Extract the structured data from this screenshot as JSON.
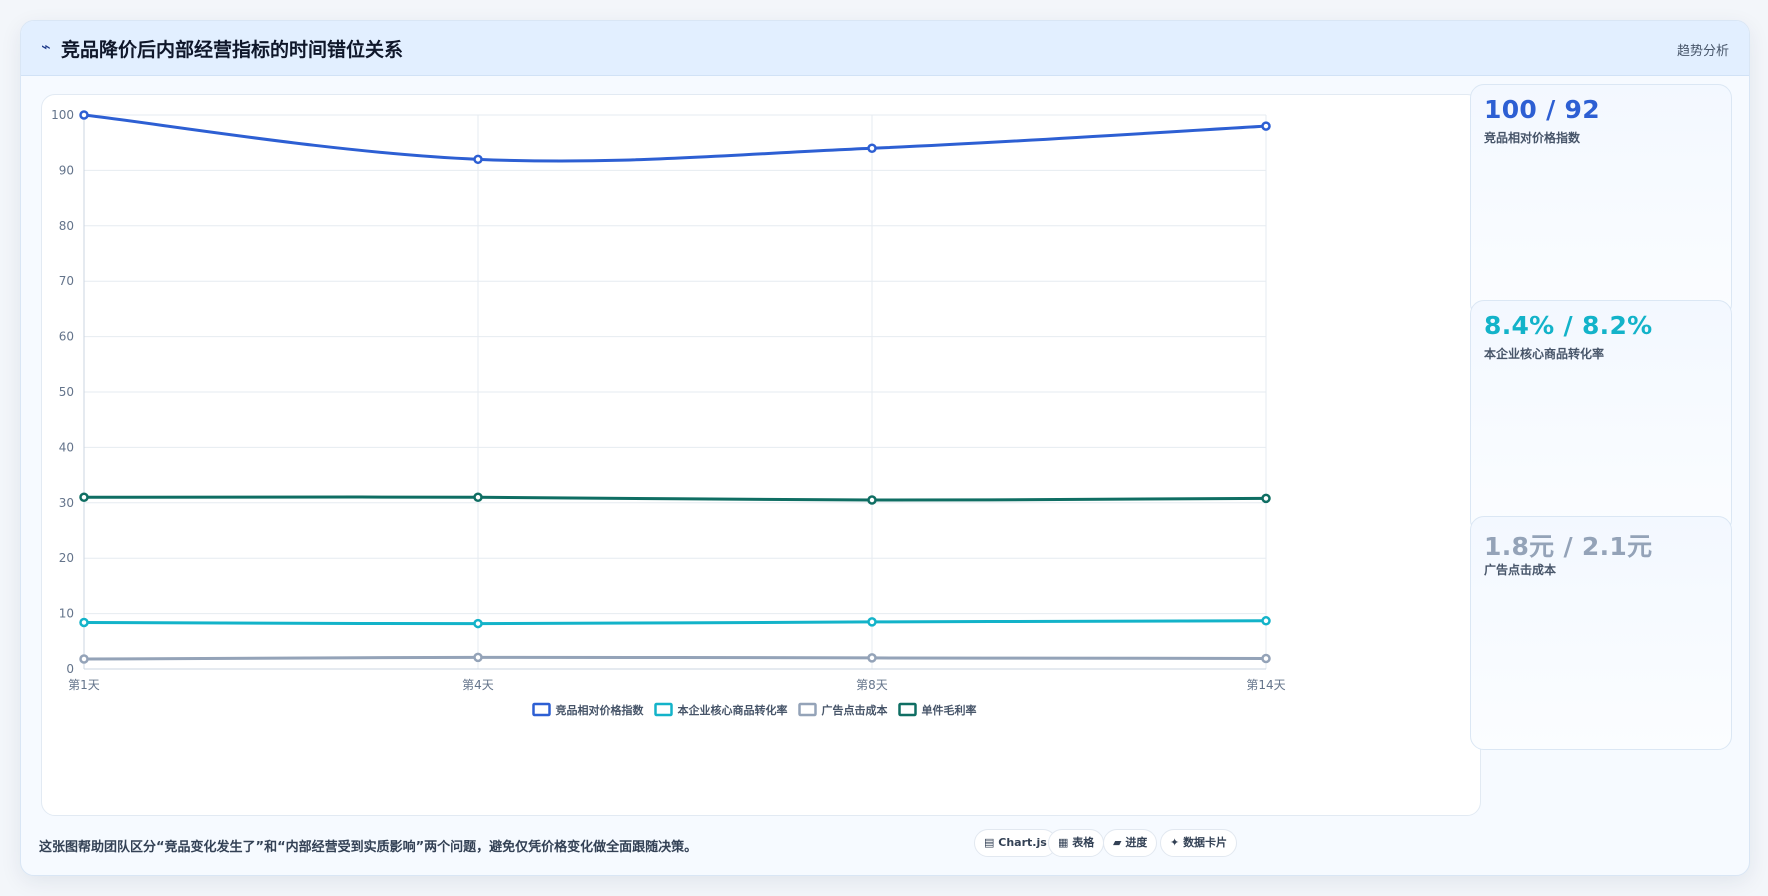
{
  "header": {
    "icon": "trend-icon",
    "icon_glyph": "⌁",
    "title": "竞品降价后内部经营指标的时间错位关系",
    "tag": "趋势分析"
  },
  "stats": [
    {
      "value": "100 / 92",
      "label": "竞品相对价格指数",
      "color": "#2d5fd3"
    },
    {
      "value": "8.4% / 8.2%",
      "label": "本企业核心商品转化率",
      "color": "#13b3c9"
    },
    {
      "value": "1.8元 / 2.1元",
      "label": "广告点击成本",
      "color": "#94a3b8"
    }
  ],
  "footer": {
    "note": "这张图帮助团队区分“竞品变化发生了”和“内部经营受到实质影响”两个问题，避免仅凭价格变化做全面跟随决策。",
    "chips": [
      {
        "icon": "chart-icon",
        "glyph": "▤",
        "label": "Chart.js"
      },
      {
        "icon": "table-icon",
        "glyph": "▦",
        "label": "表格"
      },
      {
        "icon": "progress-icon",
        "glyph": "▰",
        "label": "进度"
      },
      {
        "icon": "sparkle-icon",
        "glyph": "✦",
        "label": "数据卡片"
      }
    ]
  },
  "chart_data": {
    "type": "line",
    "categories": [
      "第1天",
      "第4天",
      "第8天",
      "第14天"
    ],
    "ylim": [
      0,
      100
    ],
    "yticks": [
      0,
      10,
      20,
      30,
      40,
      50,
      60,
      70,
      80,
      90,
      100
    ],
    "grid": true,
    "legend": "bottom",
    "series": [
      {
        "name": "竞品相对价格指数",
        "values": [
          100,
          92,
          94,
          98
        ],
        "color": "#2d5fd3"
      },
      {
        "name": "本企业核心商品转化率",
        "values": [
          8.4,
          8.2,
          8.5,
          8.7
        ],
        "color": "#13b3c9"
      },
      {
        "name": "广告点击成本",
        "values": [
          1.8,
          2.1,
          2.0,
          1.9
        ],
        "color": "#94a3b8"
      },
      {
        "name": "单件毛利率",
        "values": [
          31,
          31,
          30.5,
          30.8
        ],
        "color": "#0f6e63"
      }
    ]
  }
}
